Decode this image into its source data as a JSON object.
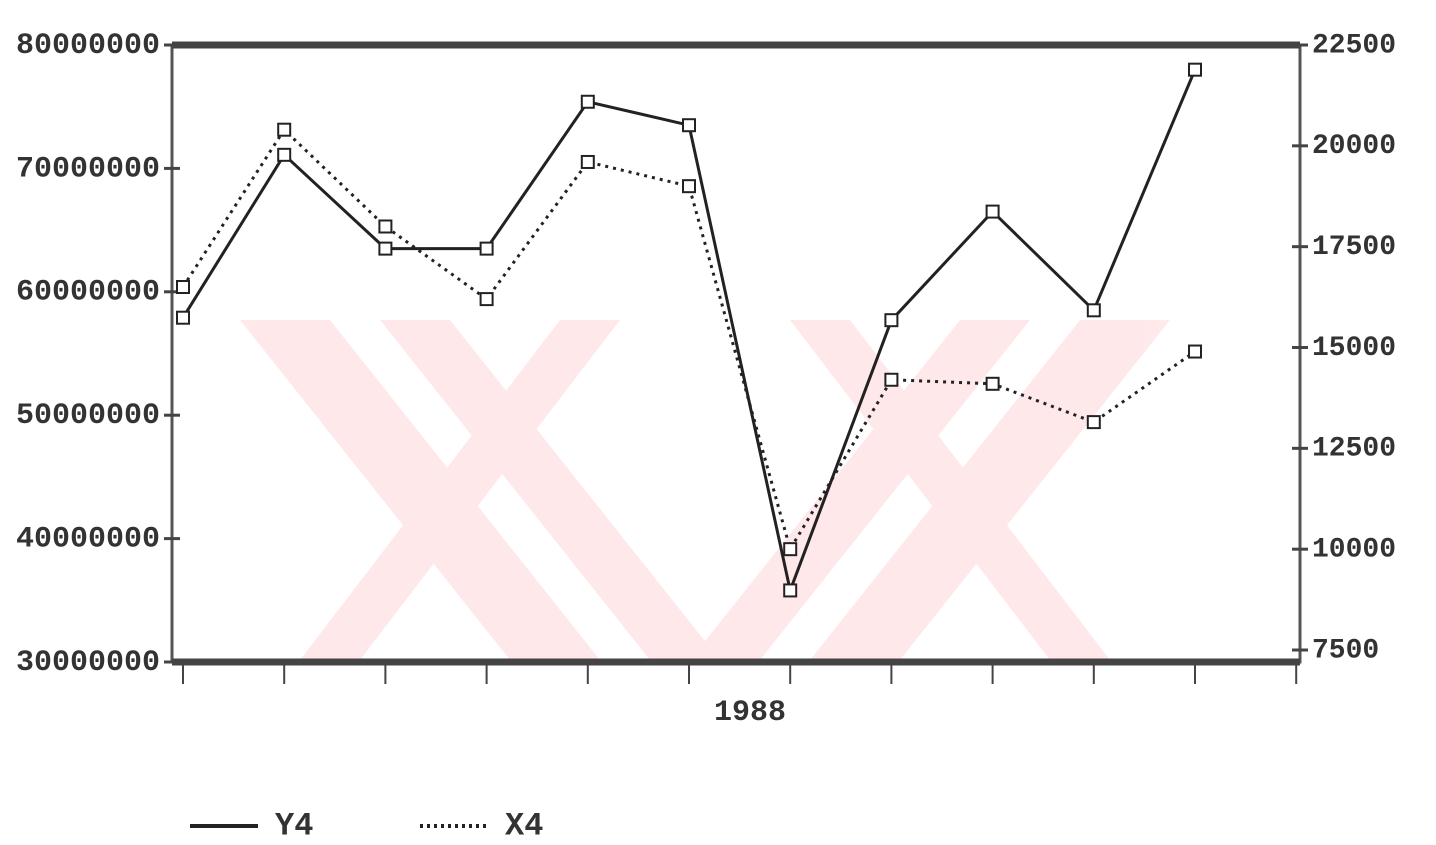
{
  "chart_data": {
    "type": "line",
    "xlabel": "1988",
    "categories": [
      null,
      null,
      null,
      null,
      null,
      null,
      null,
      null,
      null,
      null,
      null
    ],
    "series": [
      {
        "name": "Y4",
        "color": "#222222",
        "style": "solid",
        "axis": "y",
        "values": [
          57900000,
          71100000,
          63500000,
          63500000,
          75400000,
          73500000,
          35800000,
          57700000,
          66500000,
          58500000,
          78000000
        ]
      },
      {
        "name": "X4",
        "color": "#222222",
        "style": "dotted",
        "axis": "y2",
        "values": [
          16500,
          20400,
          18000,
          16200,
          19600,
          19000,
          10000,
          14200,
          14100,
          13150,
          14900
        ]
      }
    ],
    "ylim": [
      30000000,
      80000000
    ],
    "yticks": [
      30000000,
      40000000,
      50000000,
      60000000,
      70000000,
      80000000
    ],
    "y2lim": [
      7500,
      22500
    ],
    "y2ticks": [
      7500,
      10000,
      12500,
      15000,
      17500,
      20000,
      22500
    ],
    "markers": true
  }
}
